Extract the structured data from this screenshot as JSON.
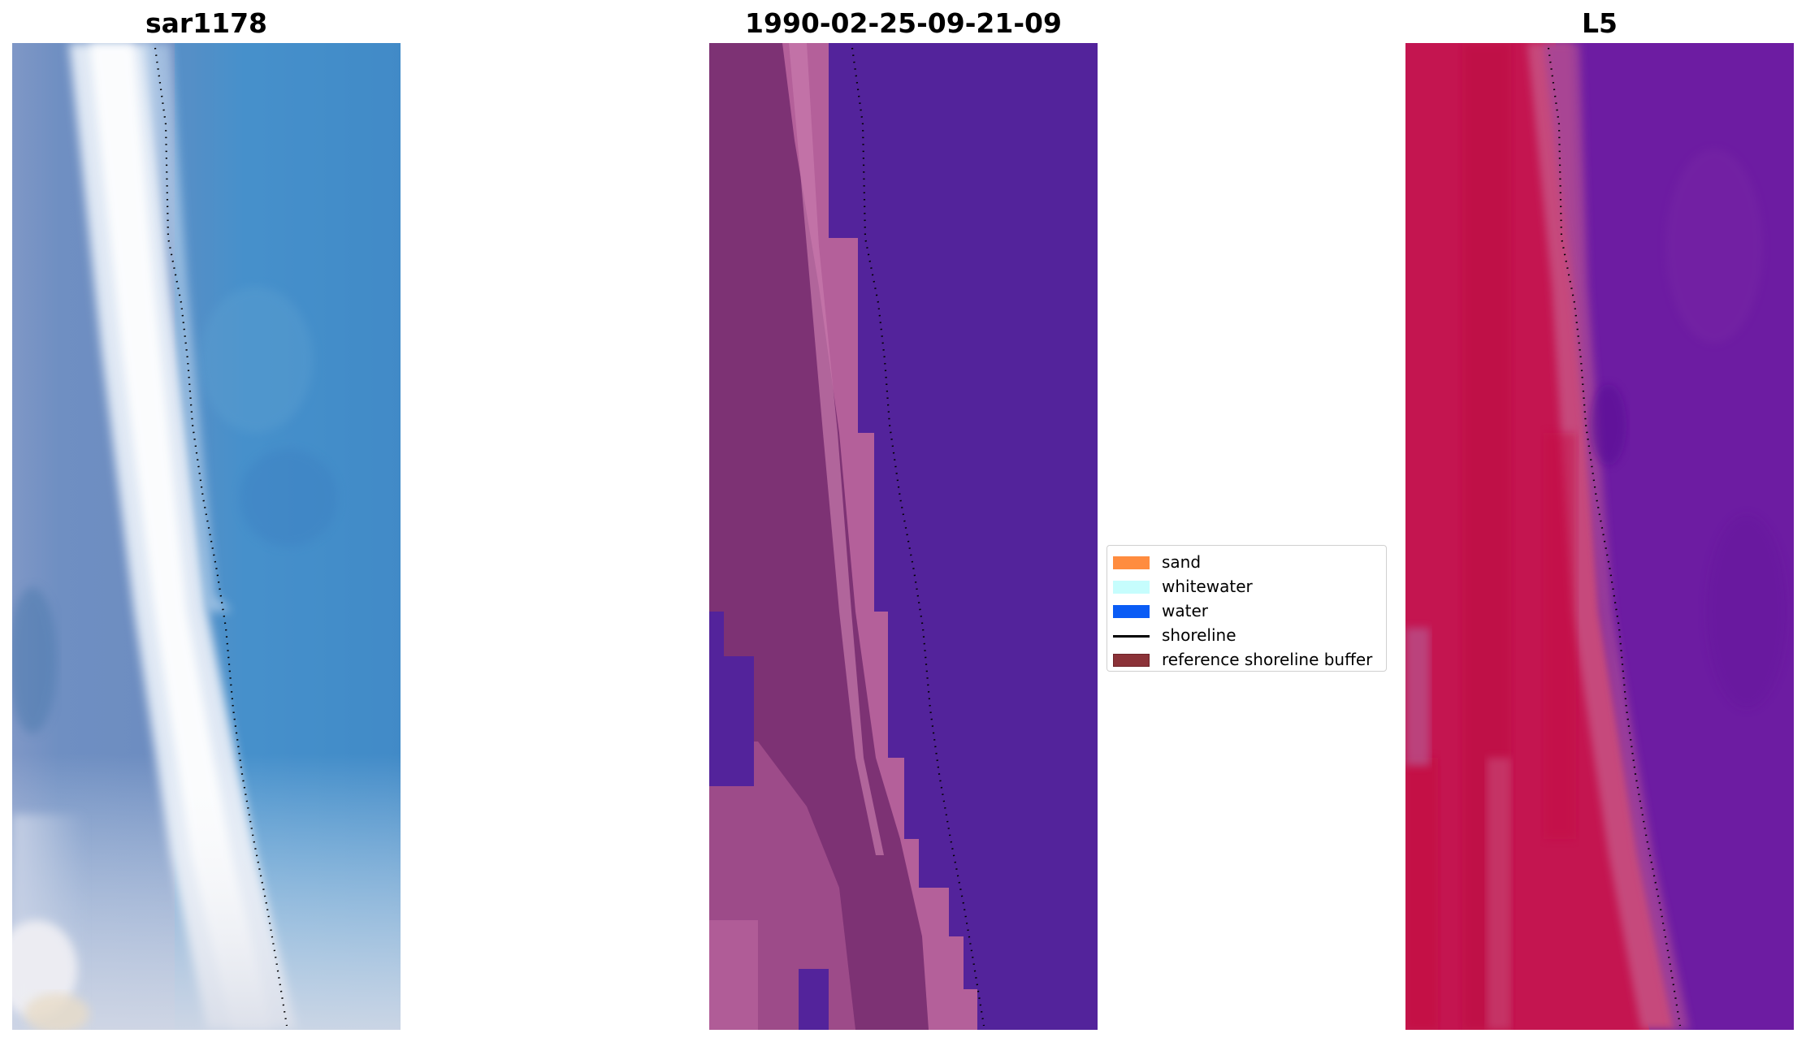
{
  "panels": [
    {
      "title": "sar1178"
    },
    {
      "title": "1990-02-25-09-21-09"
    },
    {
      "title": "L5"
    }
  ],
  "legend": {
    "items": [
      {
        "label": "sand",
        "kind": "patch",
        "color": "#ff8c3f"
      },
      {
        "label": "whitewater",
        "kind": "patch",
        "color": "#c6fdfd"
      },
      {
        "label": "water",
        "kind": "patch",
        "color": "#0a5cf5"
      },
      {
        "label": "shoreline",
        "kind": "line",
        "color": "#000000"
      },
      {
        "label": "reference shoreline buffer",
        "kind": "patch",
        "color": "#8b3238"
      }
    ]
  },
  "colors": {
    "rgb_water": "#3d85c2",
    "rgb_land": "#6e8dbf",
    "rgb_whitewater": "#eef2f8",
    "classified_water": "#53239b",
    "classified_sand": "#7b3170",
    "classified_sand_light": "#b05a92",
    "falsecolor_water": "#6c1ba0",
    "falsecolor_land": "#c5124b",
    "shoreline_points": "#000000"
  }
}
